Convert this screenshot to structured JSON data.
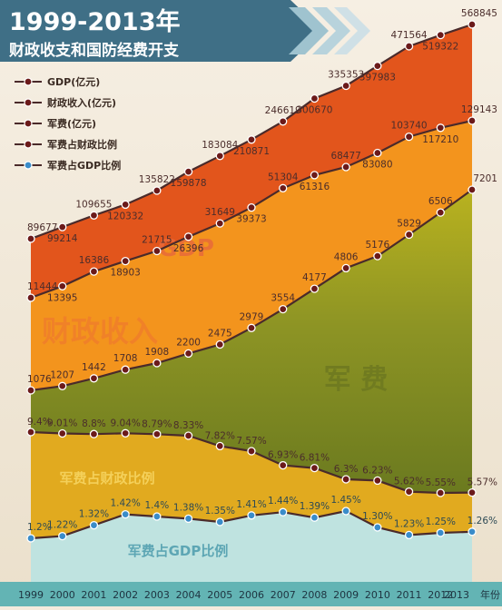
{
  "title": "1999-2013年",
  "subtitle": "财政收支和国防经费开支",
  "colors": {
    "banner": "#3f6f86",
    "gdp_band": "#e2551c",
    "revenue_band": "#f3941d",
    "military_band": "#7f8c22",
    "military_band_light": "#b5b020",
    "ratio_band": "#e1aa1f",
    "gdp_ratio_band": "#bfe3e0",
    "axis_bar": "#63b4b4",
    "line": "#4a2a2a",
    "marker_dark": "#6b1a1a",
    "marker_blue": "#3a8cc9"
  },
  "region_labels": {
    "gdp": "GDP",
    "revenue": "财政收入",
    "military": "军 费",
    "mil_ratio": "军费占财政比例",
    "gdp_ratio": "军费占GDP比例"
  },
  "chart_data": {
    "type": "area",
    "title": "1999-2013年 财政收支和国防经费开支",
    "x_unit": "年份",
    "categories": [
      "1999",
      "2000",
      "2001",
      "2002",
      "2003",
      "2004",
      "2005",
      "2006",
      "2007",
      "2008",
      "2009",
      "2010",
      "2011",
      "2012",
      "2013"
    ],
    "legend_position": "top-left",
    "series": [
      {
        "name": "GDP(亿元)",
        "key": "gdp",
        "marker": "dark",
        "values": [
          89677,
          99214,
          109655,
          120332,
          135822,
          159878,
          183084,
          210871,
          246619,
          300670,
          335353,
          397983,
          471564,
          519322,
          568845
        ],
        "labels": [
          "89677",
          "99214",
          "109655",
          "120332",
          "135822",
          "159878",
          "183084",
          "210871",
          "246619",
          "300670",
          "335353",
          "397983",
          "471564",
          "519322",
          "568845"
        ]
      },
      {
        "name": "财政收入(亿元)",
        "key": "revenue",
        "marker": "dark",
        "values": [
          11444,
          13395,
          16386,
          18903,
          21715,
          26396,
          31649,
          39373,
          51304,
          61316,
          68477,
          83080,
          103740,
          117210,
          129143
        ],
        "labels": [
          "11444",
          "13395",
          "16386",
          "18903",
          "21715",
          "26396",
          "31649",
          "39373",
          "51304",
          "61316",
          "68477",
          "83080",
          "103740",
          "117210",
          "129143"
        ]
      },
      {
        "name": "军费(亿元)",
        "key": "military",
        "marker": "dark",
        "values": [
          1076,
          1207,
          1442,
          1708,
          1908,
          2200,
          2475,
          2979,
          3554,
          4177,
          4806,
          5176,
          5829,
          6506,
          7201
        ],
        "labels": [
          "1076",
          "1207",
          "1442",
          "1708",
          "1908",
          "2200",
          "2475",
          "2979",
          "3554",
          "4177",
          "4806",
          "5176",
          "5829",
          "6506",
          "7201"
        ]
      },
      {
        "name": "军费占财政比例",
        "key": "mil_ratio",
        "marker": "dark",
        "values": [
          9.4,
          9.01,
          8.8,
          9.04,
          8.79,
          8.33,
          7.82,
          7.57,
          6.93,
          6.81,
          6.3,
          6.23,
          5.62,
          5.55,
          5.57
        ],
        "labels": [
          "9.4%",
          "9.01%",
          "8.8%",
          "9.04%",
          "8.79%",
          "8.33%",
          "7.82%",
          "7.57%",
          "6.93%",
          "6.81%",
          "6.3%",
          "6.23%",
          "5.62%",
          "5.55%",
          "5.57%"
        ]
      },
      {
        "name": "军费占GDP比例",
        "key": "gdp_ratio",
        "marker": "blue",
        "values": [
          1.2,
          1.22,
          1.32,
          1.42,
          1.4,
          1.38,
          1.35,
          1.41,
          1.44,
          1.39,
          1.45,
          1.3,
          1.23,
          1.25,
          1.26
        ],
        "labels": [
          "1.2%",
          "1.22%",
          "1.32%",
          "1.42%",
          "1.4%",
          "1.38%",
          "1.35%",
          "1.41%",
          "1.44%",
          "1.39%",
          "1.45%",
          "1.30%",
          "1.23%",
          "1.25%",
          "1.26%"
        ]
      }
    ]
  }
}
